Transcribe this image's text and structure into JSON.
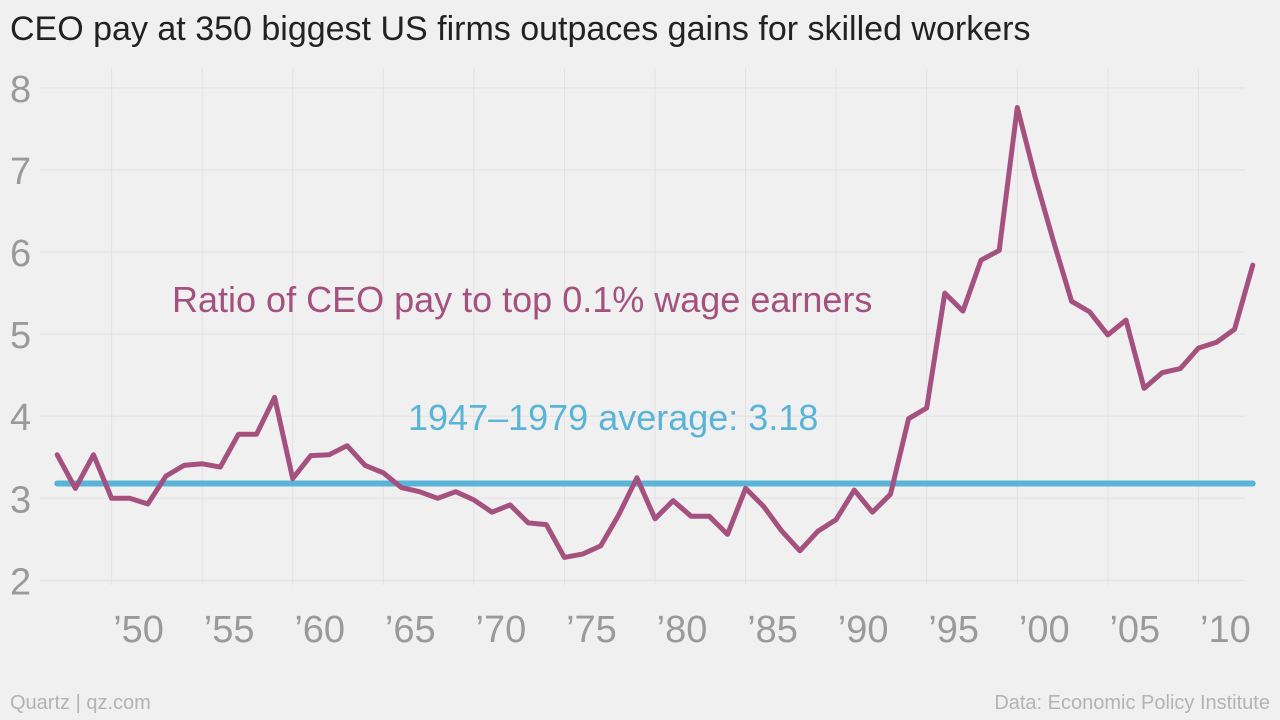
{
  "title": "CEO pay at 350 biggest US firms outpaces gains for skilled workers",
  "footer": {
    "left": "Quartz | qz.com",
    "right": "Data: Economic Policy Institute"
  },
  "chart_data": {
    "type": "line",
    "ylim": [
      1.7,
      8.4
    ],
    "xlim": [
      1946.6,
      2013.4
    ],
    "grid": true,
    "y_ticks": [
      2,
      3,
      4,
      5,
      6,
      7,
      8
    ],
    "x_ticks": [
      {
        "value": 1950,
        "label": "’50"
      },
      {
        "value": 1955,
        "label": "’55"
      },
      {
        "value": 1960,
        "label": "’60"
      },
      {
        "value": 1965,
        "label": "’65"
      },
      {
        "value": 1970,
        "label": "’70"
      },
      {
        "value": 1975,
        "label": "’75"
      },
      {
        "value": 1980,
        "label": "’80"
      },
      {
        "value": 1985,
        "label": "’85"
      },
      {
        "value": 1990,
        "label": "’90"
      },
      {
        "value": 1995,
        "label": "’95"
      },
      {
        "value": 2000,
        "label": "’00"
      },
      {
        "value": 2005,
        "label": "’05"
      },
      {
        "value": 2010,
        "label": "’10"
      }
    ],
    "series": [
      {
        "name": "Ratio of CEO pay to top 0.1% wage earners",
        "color": "#a4517f",
        "x": [
          1947,
          1948,
          1949,
          1950,
          1951,
          1952,
          1953,
          1954,
          1955,
          1956,
          1957,
          1958,
          1959,
          1960,
          1961,
          1962,
          1963,
          1964,
          1965,
          1966,
          1967,
          1968,
          1969,
          1970,
          1971,
          1972,
          1973,
          1974,
          1975,
          1976,
          1977,
          1978,
          1979,
          1980,
          1981,
          1982,
          1983,
          1984,
          1985,
          1986,
          1987,
          1988,
          1989,
          1990,
          1991,
          1992,
          1993,
          1994,
          1995,
          1996,
          1997,
          1998,
          1999,
          2000,
          2001,
          2002,
          2003,
          2004,
          2005,
          2006,
          2007,
          2008,
          2009,
          2010,
          2011,
          2012,
          2013
        ],
        "values": [
          3.53,
          3.12,
          3.53,
          3.0,
          3.0,
          2.93,
          3.27,
          3.4,
          3.42,
          3.38,
          3.78,
          3.78,
          4.23,
          3.24,
          3.52,
          3.53,
          3.64,
          3.4,
          3.31,
          3.13,
          3.08,
          3.0,
          3.08,
          2.98,
          2.83,
          2.92,
          2.7,
          2.68,
          2.28,
          2.32,
          2.42,
          2.8,
          3.25,
          2.75,
          2.97,
          2.78,
          2.78,
          2.56,
          3.12,
          2.9,
          2.6,
          2.36,
          2.6,
          2.74,
          3.1,
          2.83,
          3.05,
          3.97,
          4.1,
          5.5,
          5.28,
          5.9,
          6.02,
          7.76,
          6.9,
          6.13,
          5.4,
          5.27,
          4.99,
          5.17,
          4.34,
          4.53,
          4.58,
          4.83,
          4.9,
          5.06,
          5.84
        ]
      },
      {
        "name": "1947–1979 average: 3.18",
        "color": "#5ab4d6",
        "x": [
          1947,
          2013
        ],
        "values": [
          3.18,
          3.18
        ]
      }
    ]
  }
}
